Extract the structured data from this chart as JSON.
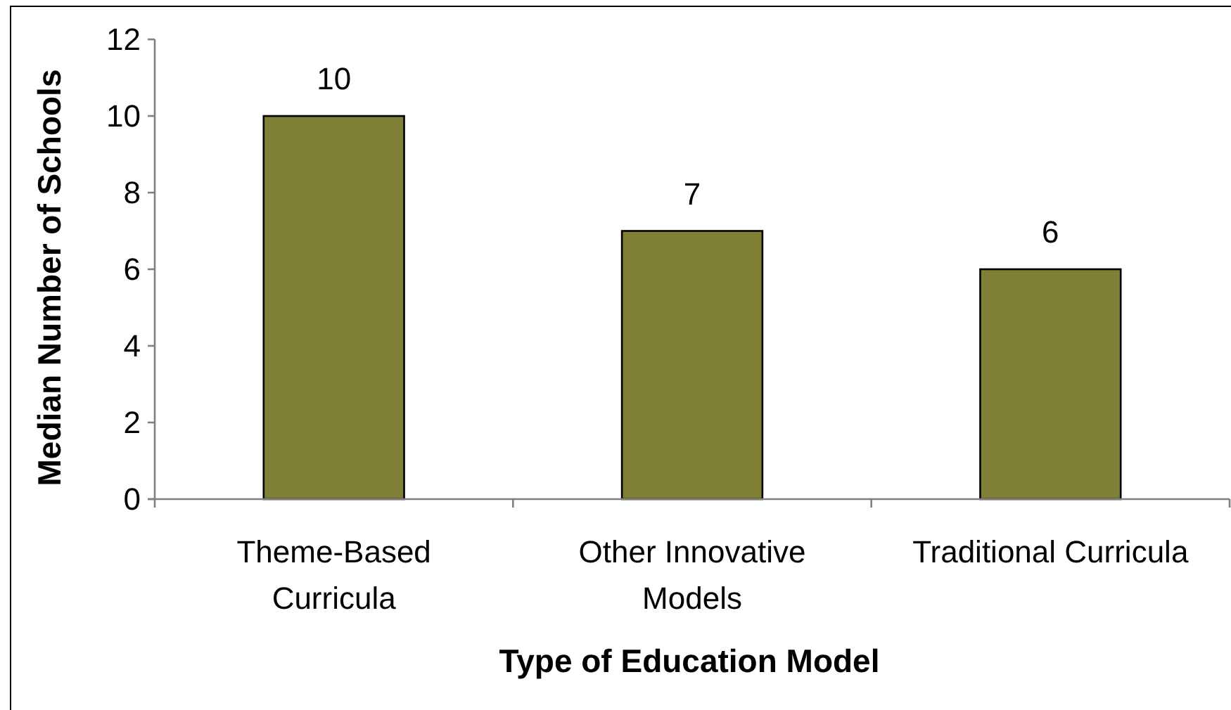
{
  "chart_data": {
    "type": "bar",
    "xlabel": "Type of Education Model",
    "ylabel": "Median Number of Schools",
    "categories": [
      "Theme-Based Curricula",
      "Other Innovative Models",
      "Traditional Curricula"
    ],
    "values": [
      10,
      7,
      6
    ],
    "color": "#7f7f35",
    "ylim": [
      0,
      12
    ],
    "yticks": [
      0,
      2,
      4,
      6,
      8,
      10,
      12
    ],
    "data_labels": true
  }
}
